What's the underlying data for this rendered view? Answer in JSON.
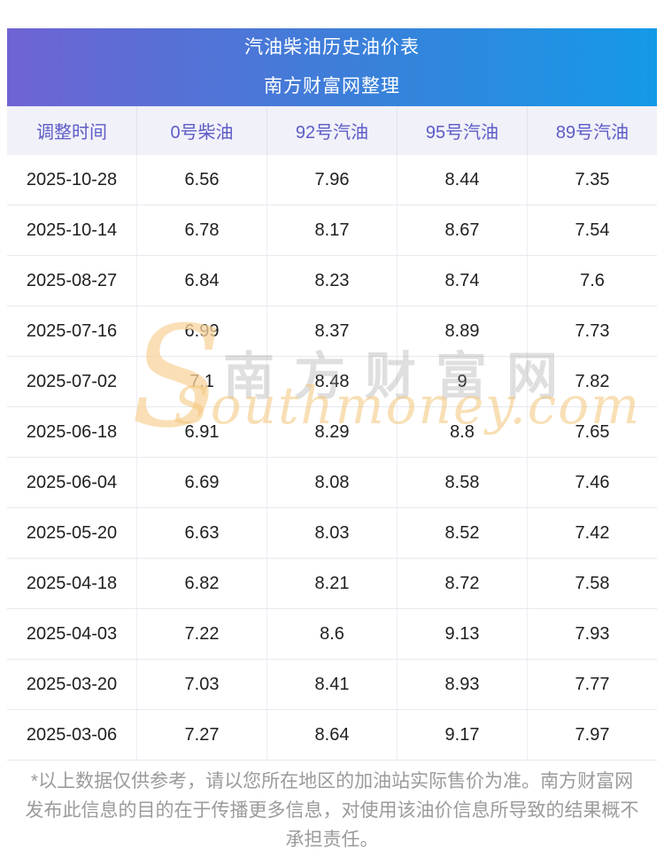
{
  "chart_data": {
    "type": "table",
    "title": "汽油柴油历史油价表",
    "subtitle": "南方财富网整理",
    "columns": [
      "调整时间",
      "0号柴油",
      "92号汽油",
      "95号汽油",
      "89号汽油"
    ],
    "rows": [
      [
        "2025-10-28",
        6.56,
        7.96,
        8.44,
        7.35
      ],
      [
        "2025-10-14",
        6.78,
        8.17,
        8.67,
        7.54
      ],
      [
        "2025-08-27",
        6.84,
        8.23,
        8.74,
        7.6
      ],
      [
        "2025-07-16",
        6.99,
        8.37,
        8.89,
        7.73
      ],
      [
        "2025-07-02",
        7.1,
        8.48,
        9,
        7.82
      ],
      [
        "2025-06-18",
        6.91,
        8.29,
        8.8,
        7.65
      ],
      [
        "2025-06-04",
        6.69,
        8.08,
        8.58,
        7.46
      ],
      [
        "2025-05-20",
        6.63,
        8.03,
        8.52,
        7.42
      ],
      [
        "2025-04-18",
        6.82,
        8.21,
        8.72,
        7.58
      ],
      [
        "2025-04-03",
        7.22,
        8.6,
        9.13,
        7.93
      ],
      [
        "2025-03-20",
        7.03,
        8.41,
        8.93,
        7.77
      ],
      [
        "2025-03-06",
        7.27,
        8.64,
        9.17,
        7.97
      ]
    ],
    "layout_hints": {
      "grid": true,
      "header_background": "#f1f1f9",
      "banner_gradient": [
        "#6f63d3",
        "#149ae7"
      ]
    }
  },
  "watermark": {
    "logo_letter": "S",
    "site_name_cn": "南方财富网",
    "site_name_en": "Southmoney.com"
  },
  "footer": {
    "disclaimer": "*以上数据仅供参考，请以您所在地区的加油站实际售价为准。南方财富网发布此信息的目的在于传播更多信息，对使用该油价信息所导致的结果概不承担责任。"
  },
  "colors": {
    "banner_left": "#6f63d3",
    "banner_right": "#149ae7",
    "header_text": "#5d5cc7",
    "header_background": "#f1f1f9",
    "cell_text": "#1f1f1f",
    "divider": "#e6e9ef",
    "footer_text": "#9b9b9b",
    "watermark_orange": "#f3c478",
    "watermark_gray": "#969696"
  }
}
